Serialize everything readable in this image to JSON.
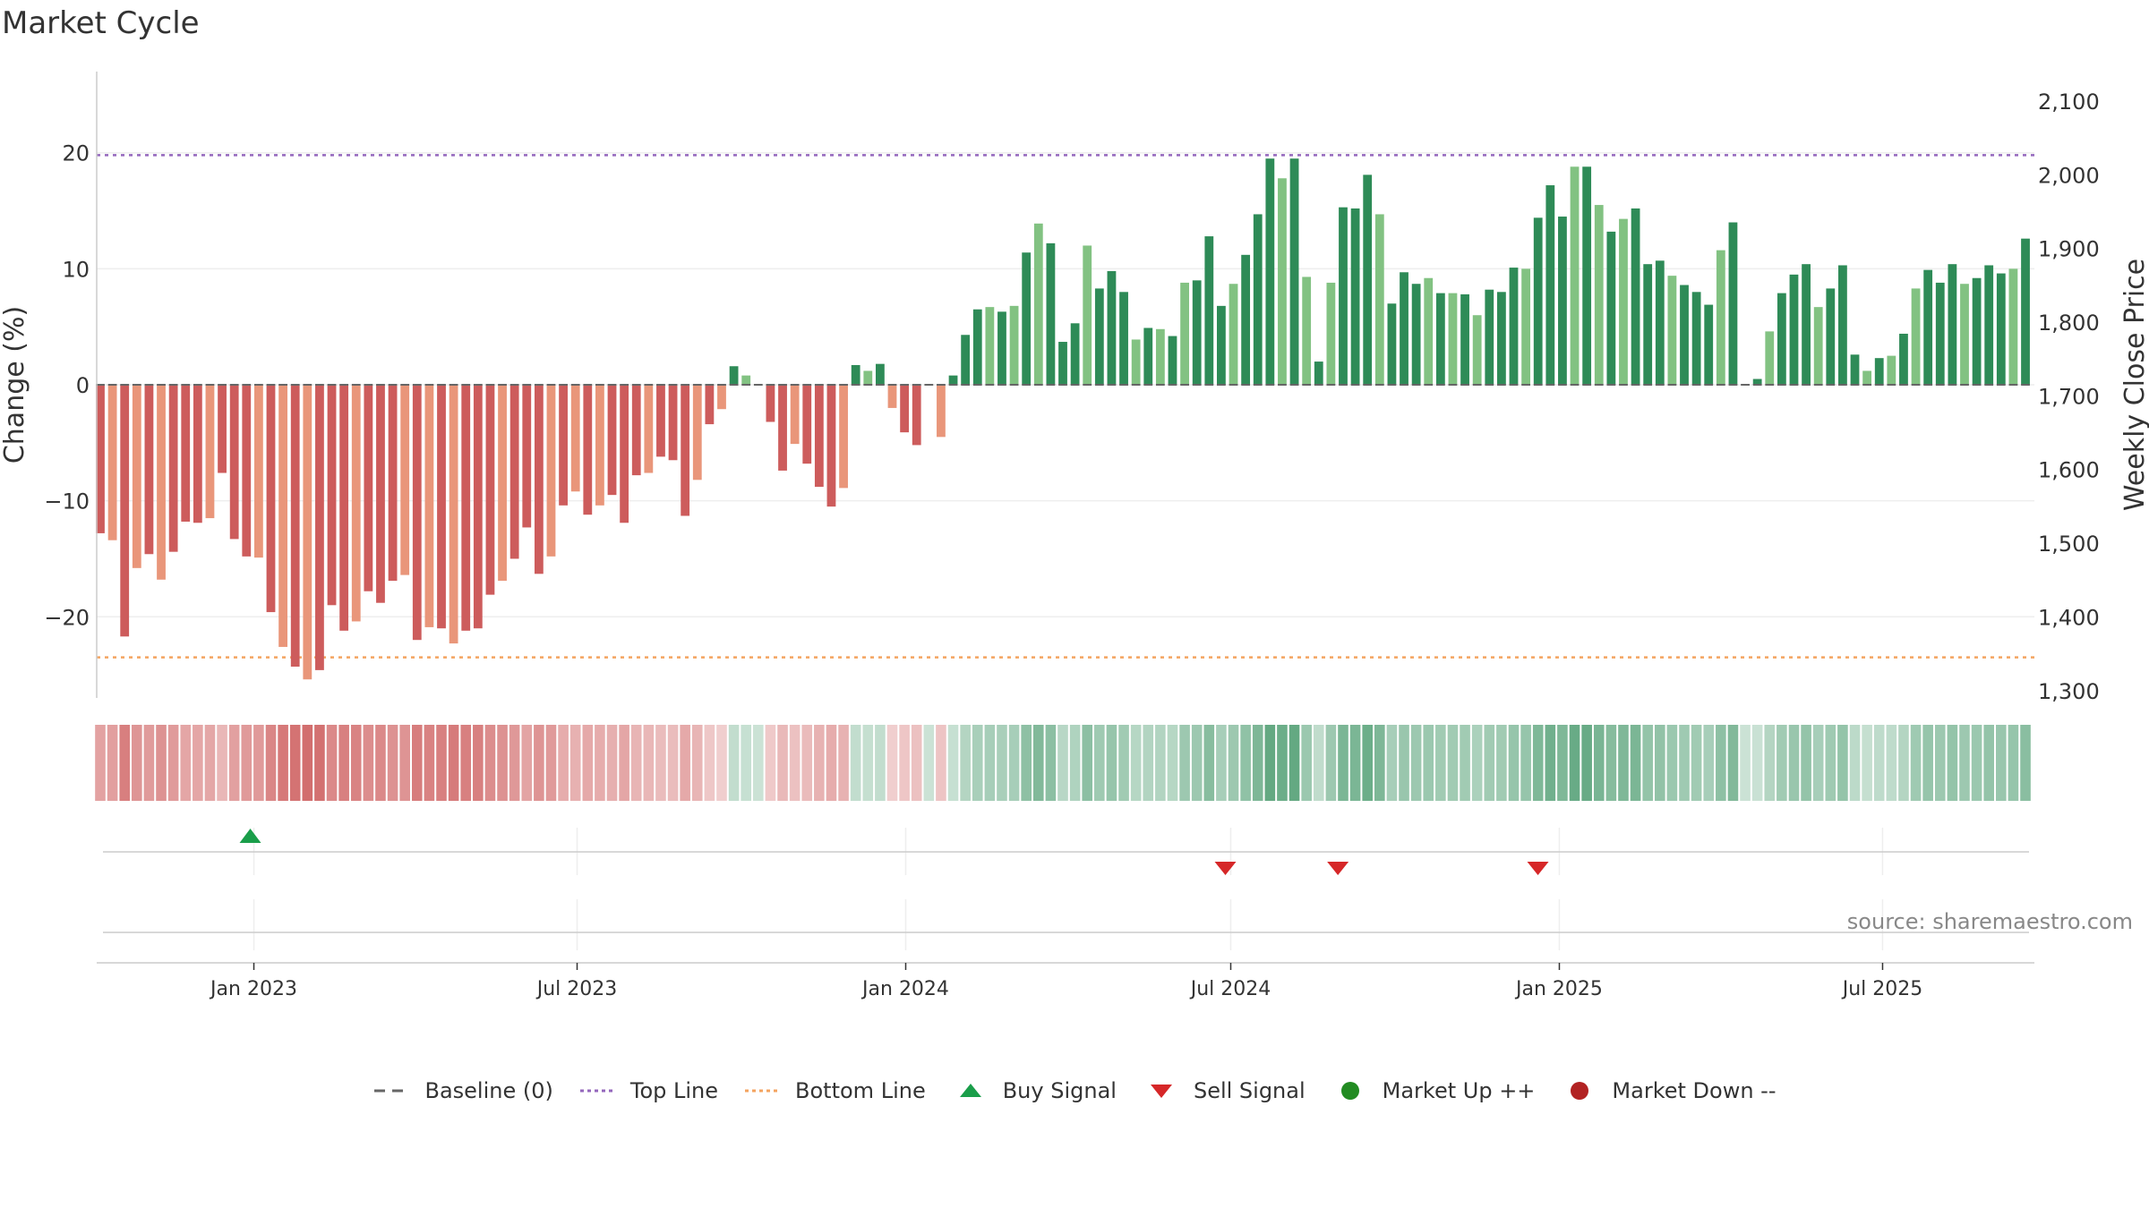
{
  "title": "Market Cycle",
  "source": "source: sharemaestro.com",
  "colors": {
    "pos_dark": "#2e8b57",
    "pos_light": "#82c282",
    "neg_dark": "#cd5c5c",
    "neg_light": "#e9967a",
    "top_line": "#9467bd",
    "bottom_line": "#f4a460",
    "buy": "#1a9e4a",
    "sell": "#d62728",
    "market_up": "#228b22",
    "market_down": "#b22222",
    "baseline": "#666666"
  },
  "legend": [
    {
      "label": "Baseline (0)",
      "symbol": "dash",
      "color": "#666666"
    },
    {
      "label": "Top Line",
      "symbol": "dot",
      "color": "#9467bd"
    },
    {
      "label": "Bottom Line",
      "symbol": "dot",
      "color": "#f4a460"
    },
    {
      "label": "Buy Signal",
      "symbol": "tri-up",
      "color": "#1a9e4a"
    },
    {
      "label": "Sell Signal",
      "symbol": "tri-down",
      "color": "#d62728"
    },
    {
      "label": "Market Up ++",
      "symbol": "circle",
      "color": "#228b22"
    },
    {
      "label": "Market Down --",
      "symbol": "circle",
      "color": "#b22222"
    }
  ],
  "chart_data": {
    "type": "bar",
    "ylabel": "Change (%)",
    "y2label": "Weekly Close Price",
    "ylim": [
      -27,
      27
    ],
    "y2lim": [
      1290,
      2140
    ],
    "yticks": [
      -20,
      -10,
      0,
      10,
      20
    ],
    "y2ticks": [
      1300,
      1400,
      1500,
      1600,
      1700,
      1800,
      1900,
      2000,
      2100
    ],
    "y2tick_labels": [
      "1,300",
      "1,400",
      "1,500",
      "1,600",
      "1,700",
      "1,800",
      "1,900",
      "2,000",
      "2,100"
    ],
    "xticks": [
      {
        "date": "2023-01-01",
        "label": "Jan 2023"
      },
      {
        "date": "2023-07-01",
        "label": "Jul 2023"
      },
      {
        "date": "2024-01-01",
        "label": "Jan 2024"
      },
      {
        "date": "2024-07-01",
        "label": "Jul 2024"
      },
      {
        "date": "2025-01-01",
        "label": "Jan 2025"
      },
      {
        "date": "2025-07-01",
        "label": "Jul 2025"
      }
    ],
    "x_range": [
      "2022-10-05",
      "2025-09-24"
    ],
    "top_line": 19.8,
    "bottom_line": -23.5,
    "baseline": 0,
    "weeks": [
      "2022-10-07",
      "2025-09-19"
    ],
    "values": [
      -12.8,
      -13.4,
      -21.7,
      -15.8,
      -14.6,
      -16.8,
      -14.4,
      -11.8,
      -11.9,
      -11.5,
      -7.6,
      -13.3,
      -14.8,
      -14.9,
      -19.6,
      -22.6,
      -24.3,
      -25.4,
      -24.6,
      -19.0,
      -21.2,
      -20.4,
      -17.8,
      -18.8,
      -16.9,
      -16.4,
      -22.0,
      -20.9,
      -21.0,
      -22.3,
      -21.2,
      -21.0,
      -18.1,
      -16.9,
      -15.0,
      -12.3,
      -16.3,
      -14.8,
      -10.4,
      -9.2,
      -11.2,
      -10.4,
      -9.5,
      -11.9,
      -7.8,
      -7.6,
      -6.2,
      -6.5,
      -11.3,
      -8.2,
      -3.4,
      -2.1,
      1.6,
      0.8,
      0,
      -3.2,
      -7.4,
      -5.1,
      -6.8,
      -8.8,
      -10.5,
      -8.9,
      1.7,
      1.2,
      1.8,
      -2.0,
      -4.1,
      -5.2,
      0,
      -4.5,
      0.8,
      4.3,
      6.5,
      6.7,
      6.3,
      6.8,
      11.4,
      13.9,
      12.2,
      3.7,
      5.3,
      12.0,
      8.3,
      9.8,
      8.0,
      3.9,
      4.9,
      4.8,
      4.2,
      8.8,
      9.0,
      12.8,
      6.8,
      8.7,
      11.2,
      14.7,
      19.5,
      17.8,
      19.5,
      9.3,
      2.0,
      8.8,
      15.3,
      15.2,
      18.1,
      14.7,
      7.0,
      9.7,
      8.7,
      9.2,
      7.9,
      7.9,
      7.8,
      6.0,
      8.2,
      8.0,
      10.1,
      10.0,
      14.4,
      17.2,
      14.5,
      18.8,
      18.8,
      15.5,
      13.2,
      14.3,
      15.2,
      10.4,
      10.7,
      9.4,
      8.6,
      8.0,
      6.9,
      11.6,
      14.0,
      0,
      0.5,
      4.6,
      7.9,
      9.5,
      10.4,
      6.7,
      8.3,
      10.3,
      2.6,
      1.2,
      2.3,
      2.5,
      4.4,
      8.3,
      9.9,
      8.8,
      10.4,
      8.7,
      9.2,
      10.3,
      9.6,
      10.0,
      12.6
    ],
    "price": [],
    "signals": {
      "buy": [
        "2022-12-30"
      ],
      "sell": [
        "2024-06-28",
        "2024-08-30",
        "2024-12-20"
      ]
    },
    "grid": true
  }
}
